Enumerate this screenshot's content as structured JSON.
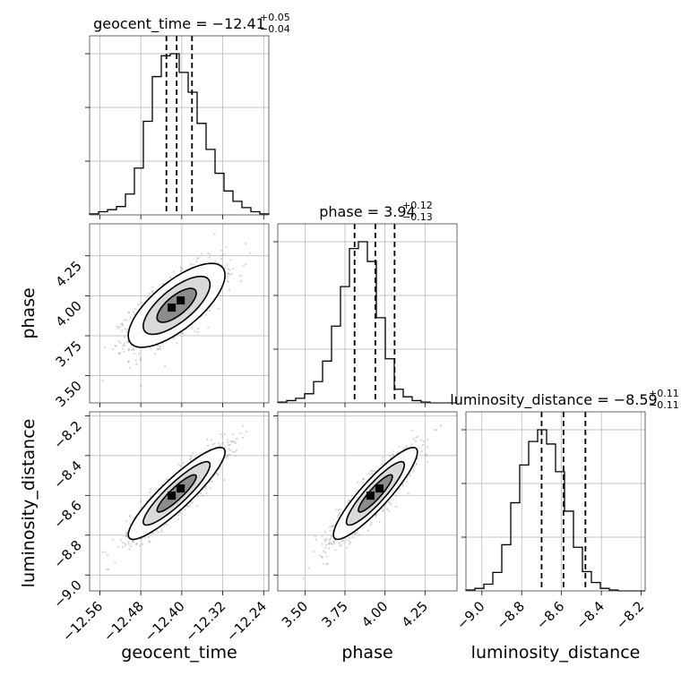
{
  "chart_data": {
    "type": "corner",
    "parameters": [
      {
        "name": "geocent_time",
        "title_prefix": "geocent_time = −12.41",
        "sup": "+0.05",
        "sub": "−0.04",
        "median": -12.41,
        "q16": -12.43,
        "q84": -12.38,
        "range": [
          -12.58,
          -12.23
        ],
        "ticks": [
          "−12.56",
          "−12.48",
          "−12.40",
          "−12.32",
          "−12.24"
        ],
        "tick_values": [
          -12.56,
          -12.48,
          -12.4,
          -12.32,
          -12.24
        ]
      },
      {
        "name": "phase",
        "title_prefix": "phase = 3.94",
        "sup": "+0.12",
        "sub": "−0.13",
        "median": 3.94,
        "q16": 3.81,
        "q84": 4.06,
        "range": [
          3.33,
          4.45
        ],
        "ticks": [
          "3.50",
          "3.75",
          "4.00",
          "4.25"
        ],
        "tick_values": [
          3.5,
          3.75,
          4.0,
          4.25
        ]
      },
      {
        "name": "luminosity_distance",
        "title_prefix": "luminosity_distance = −8.59",
        "sup": "+0.11",
        "sub": "−0.11",
        "median": -8.59,
        "q16": -8.7,
        "q84": -8.48,
        "range": [
          -9.08,
          -8.18
        ],
        "ticks": [
          "−9.0",
          "−8.8",
          "−8.6",
          "−8.4",
          "−8.2"
        ],
        "tick_values": [
          -9.0,
          -8.8,
          -8.6,
          -8.4,
          -8.2
        ]
      }
    ],
    "histograms": [
      {
        "param": 0,
        "edges_range": [
          -12.58,
          -12.23
        ],
        "counts": [
          1,
          3,
          5,
          8,
          20,
          45,
          90,
          133,
          153,
          155,
          137,
          118,
          88,
          63,
          40,
          23,
          13,
          7,
          3,
          1
        ]
      },
      {
        "param": 1,
        "edges_range": [
          3.33,
          4.45
        ],
        "counts": [
          1,
          3,
          6,
          12,
          28,
          55,
          101,
          153,
          203,
          212,
          186,
          112,
          58,
          18,
          8,
          3,
          1,
          0,
          0,
          0
        ]
      },
      {
        "param": 2,
        "edges_range": [
          -9.08,
          -8.18
        ],
        "counts": [
          1,
          3,
          8,
          22,
          55,
          105,
          150,
          178,
          192,
          175,
          142,
          95,
          52,
          23,
          10,
          3,
          1,
          0,
          0,
          0
        ]
      }
    ],
    "pairs": [
      {
        "x": 0,
        "y": 1,
        "center": [
          -12.41,
          3.94
        ],
        "sd": [
          0.045,
          0.125
        ],
        "rho": 0.72
      },
      {
        "x": 0,
        "y": 2,
        "center": [
          -12.41,
          -8.59
        ],
        "sd": [
          0.045,
          0.11
        ],
        "rho": 0.9
      },
      {
        "x": 1,
        "y": 2,
        "center": [
          3.94,
          -8.59
        ],
        "sd": [
          0.125,
          0.11
        ],
        "rho": 0.9
      }
    ],
    "grid": true
  }
}
